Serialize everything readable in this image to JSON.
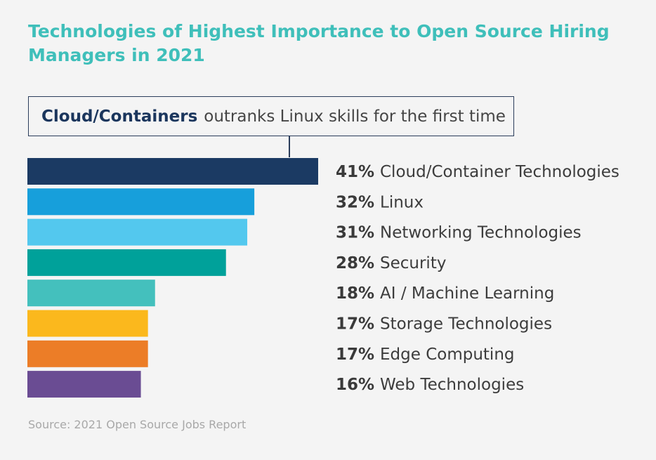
{
  "title": "Technologies of Highest Importance to Open Source Hiring Managers in 2021",
  "callout": {
    "strong": "Cloud/Containers",
    "rest": "outranks Linux skills for the first time"
  },
  "source": "Source: 2021 Open Source Jobs Report",
  "chart_data": {
    "type": "bar",
    "orientation": "horizontal",
    "title": "Technologies of Highest Importance to Open Source Hiring Managers in 2021",
    "categories": [
      "Cloud/Container Technologies",
      "Linux",
      "Networking Technologies",
      "Security",
      "AI / Machine Learning",
      "Storage Technologies",
      "Edge Computing",
      "Web Technologies"
    ],
    "values": [
      41,
      32,
      31,
      28,
      18,
      17,
      17,
      16
    ],
    "value_labels": [
      "41%",
      "32%",
      "31%",
      "28%",
      "18%",
      "17%",
      "17%",
      "16%"
    ],
    "colors": [
      "#1b3a63",
      "#179fdb",
      "#53c8ee",
      "#00a19a",
      "#44c0bd",
      "#fbb81d",
      "#ec7d27",
      "#6a4c93"
    ],
    "xlabel": "",
    "ylabel": "",
    "unit": "%",
    "grid": false,
    "legend": "none"
  }
}
